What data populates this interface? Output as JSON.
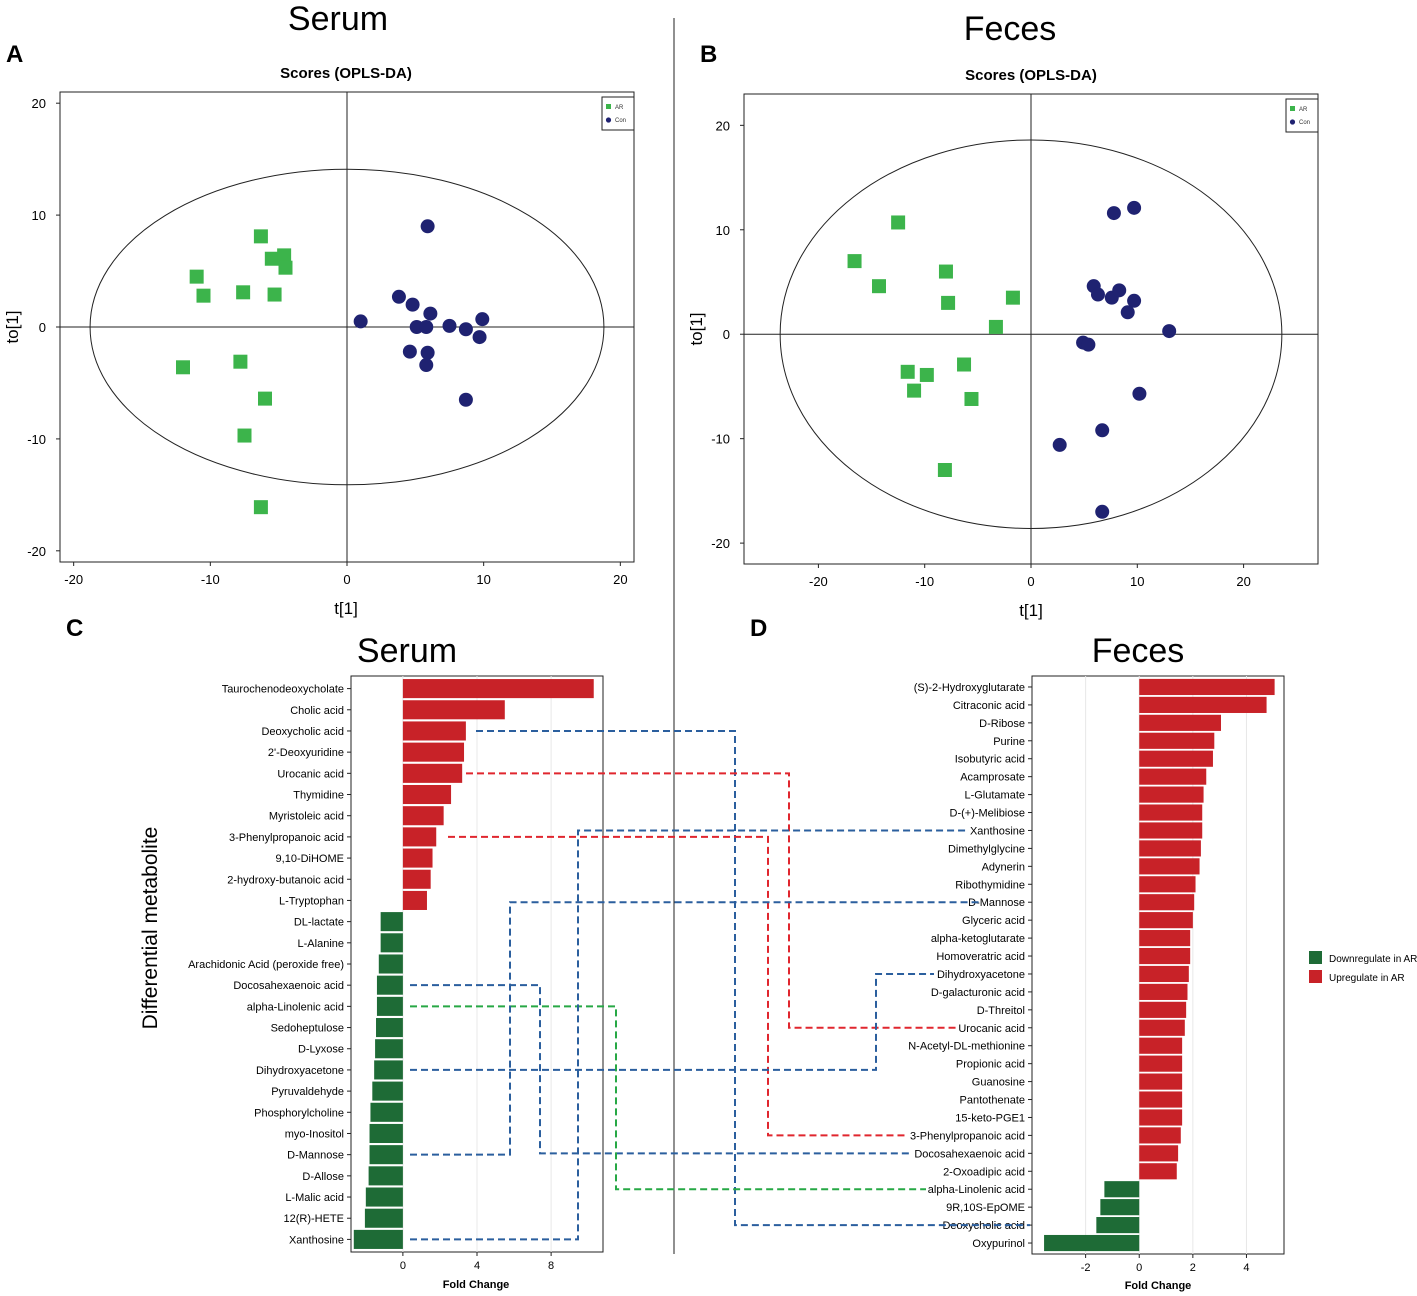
{
  "colors": {
    "group_ar": "#3cb44b",
    "group_con": "#1f2271",
    "up": "#c82228",
    "down": "#1e6b36",
    "link_blue": "#2b5f9e",
    "link_red": "#e0262e",
    "link_green": "#27a845"
  },
  "chart_data": [
    {
      "panel": "A",
      "type": "scatter",
      "section_title": "Serum",
      "title": "Scores (OPLS-DA)",
      "xlabel": "t[1]",
      "ylabel": "to[1]",
      "xlim": [
        -21,
        21
      ],
      "ylim": [
        -21,
        21
      ],
      "xticks": [
        -20,
        -10,
        0,
        10,
        20
      ],
      "yticks": [
        -20,
        -10,
        0,
        10,
        20
      ],
      "ellipse": {
        "rx": 18.8,
        "ry": 14.1
      },
      "legend": [
        "AR",
        "Con"
      ],
      "series": [
        {
          "name": "AR",
          "marker": "square",
          "points": [
            [
              -6.3,
              8.1
            ],
            [
              -5.5,
              6.1
            ],
            [
              -4.6,
              6.4
            ],
            [
              -4.5,
              5.3
            ],
            [
              -11,
              4.5
            ],
            [
              -10.5,
              2.8
            ],
            [
              -7.6,
              3.1
            ],
            [
              -5.3,
              2.9
            ],
            [
              -12,
              -3.6
            ],
            [
              -7.8,
              -3.1
            ],
            [
              -6,
              -6.4
            ],
            [
              -7.5,
              -9.7
            ],
            [
              -6.3,
              -16.1
            ]
          ]
        },
        {
          "name": "Con",
          "marker": "circle",
          "points": [
            [
              5.9,
              9
            ],
            [
              1,
              0.5
            ],
            [
              3.8,
              2.7
            ],
            [
              4.8,
              2
            ],
            [
              6.1,
              1.2
            ],
            [
              5.1,
              0
            ],
            [
              5.8,
              0
            ],
            [
              7.5,
              0.1
            ],
            [
              8.7,
              -0.2
            ],
            [
              9.9,
              0.7
            ],
            [
              9.7,
              -0.9
            ],
            [
              4.6,
              -2.2
            ],
            [
              5.9,
              -2.3
            ],
            [
              5.8,
              -3.4
            ],
            [
              8.7,
              -6.5
            ]
          ]
        }
      ]
    },
    {
      "panel": "B",
      "type": "scatter",
      "section_title": "Feces",
      "title": "Scores (OPLS-DA)",
      "xlabel": "t[1]",
      "ylabel": "to[1]",
      "xlim": [
        -27,
        27
      ],
      "ylim": [
        -22,
        23
      ],
      "xticks": [
        -20,
        -10,
        0,
        10,
        20
      ],
      "yticks": [
        -20,
        -10,
        0,
        10,
        20
      ],
      "ellipse": {
        "rx": 23.6,
        "ry": 18.6
      },
      "legend": [
        "AR",
        "Con"
      ],
      "series": [
        {
          "name": "AR",
          "marker": "square",
          "points": [
            [
              -12.5,
              10.7
            ],
            [
              -16.6,
              7
            ],
            [
              -14.3,
              4.6
            ],
            [
              -8,
              6
            ],
            [
              -7.8,
              3
            ],
            [
              -1.7,
              3.5
            ],
            [
              -3.3,
              0.7
            ],
            [
              -11.6,
              -3.6
            ],
            [
              -9.8,
              -3.9
            ],
            [
              -6.3,
              -2.9
            ],
            [
              -11,
              -5.4
            ],
            [
              -5.6,
              -6.2
            ],
            [
              -8.1,
              -13
            ]
          ]
        },
        {
          "name": "Con",
          "marker": "circle",
          "points": [
            [
              7.8,
              11.6
            ],
            [
              9.7,
              12.1
            ],
            [
              5.9,
              4.6
            ],
            [
              6.3,
              3.8
            ],
            [
              7.6,
              3.5
            ],
            [
              8.3,
              4.2
            ],
            [
              9.7,
              3.2
            ],
            [
              9.1,
              2.1
            ],
            [
              13,
              0.3
            ],
            [
              4.9,
              -0.8
            ],
            [
              5.4,
              -1
            ],
            [
              10.2,
              -5.7
            ],
            [
              6.7,
              -9.2
            ],
            [
              2.7,
              -10.6
            ],
            [
              6.7,
              -17
            ]
          ]
        }
      ]
    },
    {
      "panel": "C",
      "type": "bar",
      "orientation": "horizontal",
      "section_title": "Serum",
      "xlabel": "Fold Change",
      "ylabel": "Differential metabolite",
      "xlim": [
        -2.8,
        10.8
      ],
      "xticks": [
        0,
        4,
        8
      ],
      "categories": [
        "Taurochenodeoxycholate",
        "Cholic acid",
        "Deoxycholic acid",
        "2'-Deoxyuridine",
        "Urocanic acid",
        "Thymidine",
        "Myristoleic acid",
        "3-Phenylpropanoic acid",
        "9,10-DiHOME",
        "2-hydroxy-butanoic acid",
        "L-Tryptophan",
        "DL-lactate",
        "L-Alanine",
        "Arachidonic Acid (peroxide free)",
        "Docosahexaenoic acid",
        "alpha-Linolenic acid",
        "Sedoheptulose",
        "D-Lyxose",
        "Dihydroxyacetone",
        "Pyruvaldehyde",
        "Phosphorylcholine",
        "myo-Inositol",
        "D-Mannose",
        "D-Allose",
        "L-Malic acid",
        "12(R)-HETE",
        "Xanthosine"
      ],
      "values": [
        10.3,
        5.5,
        3.4,
        3.3,
        3.2,
        2.6,
        2.2,
        1.8,
        1.6,
        1.5,
        1.3,
        -1.2,
        -1.2,
        -1.3,
        -1.4,
        -1.4,
        -1.45,
        -1.5,
        -1.55,
        -1.65,
        -1.75,
        -1.8,
        -1.8,
        -1.85,
        -2,
        -2.05,
        -2.65
      ]
    },
    {
      "panel": "D",
      "type": "bar",
      "orientation": "horizontal",
      "section_title": "Feces",
      "xlabel": "Fold Change",
      "xlim": [
        -4.0,
        5.4
      ],
      "xticks": [
        -2,
        0,
        2,
        4
      ],
      "categories": [
        "(S)-2-Hydroxyglutarate",
        "Citraconic acid",
        "D-Ribose",
        "Purine",
        "Isobutyric acid",
        "Acamprosate",
        "L-Glutamate",
        "D-(+)-Melibiose",
        "Xanthosine",
        "Dimethylglycine",
        "Adynerin",
        "Ribothymidine",
        "D-Mannose",
        "Glyceric acid",
        "alpha-ketoglutarate",
        "Homoveratric acid",
        "Dihydroxyacetone",
        "D-galacturonic acid",
        "D-Threitol",
        "Urocanic acid",
        "N-Acetyl-DL-methionine",
        "Propionic acid",
        "Guanosine",
        "Pantothenate",
        "15-keto-PGE1",
        "3-Phenylpropanoic acid",
        "Docosahexaenoic acid",
        "2-Oxoadipic acid",
        "alpha-Linolenic acid",
        "9R,10S-EpOME",
        "Deoxycholic acid",
        "Oxypurinol"
      ],
      "values": [
        5.05,
        4.75,
        3.05,
        2.8,
        2.75,
        2.5,
        2.4,
        2.35,
        2.35,
        2.3,
        2.25,
        2.1,
        2.05,
        2.0,
        1.9,
        1.9,
        1.85,
        1.8,
        1.75,
        1.7,
        1.6,
        1.6,
        1.6,
        1.6,
        1.6,
        1.55,
        1.45,
        1.4,
        -1.3,
        -1.45,
        -1.6,
        -3.55
      ],
      "legend": [
        "Downregulate in AR",
        "Upregulate in AR"
      ]
    }
  ],
  "panel_labels": [
    "A",
    "B",
    "C",
    "D"
  ],
  "links": [
    {
      "from": "Deoxycholic acid",
      "to": "Deoxycholic acid",
      "color": "blue"
    },
    {
      "from": "Urocanic acid",
      "to": "Urocanic acid",
      "color": "red"
    },
    {
      "from": "3-Phenylpropanoic acid",
      "to": "3-Phenylpropanoic acid",
      "color": "red"
    },
    {
      "from": "Docosahexaenoic acid",
      "to": "Docosahexaenoic acid",
      "color": "blue"
    },
    {
      "from": "alpha-Linolenic acid",
      "to": "alpha-Linolenic acid",
      "color": "green"
    },
    {
      "from": "Dihydroxyacetone",
      "to": "Dihydroxyacetone",
      "color": "blue"
    },
    {
      "from": "D-Mannose",
      "to": "D-Mannose",
      "color": "blue"
    },
    {
      "from": "Xanthosine",
      "to": "Xanthosine",
      "color": "blue"
    }
  ]
}
